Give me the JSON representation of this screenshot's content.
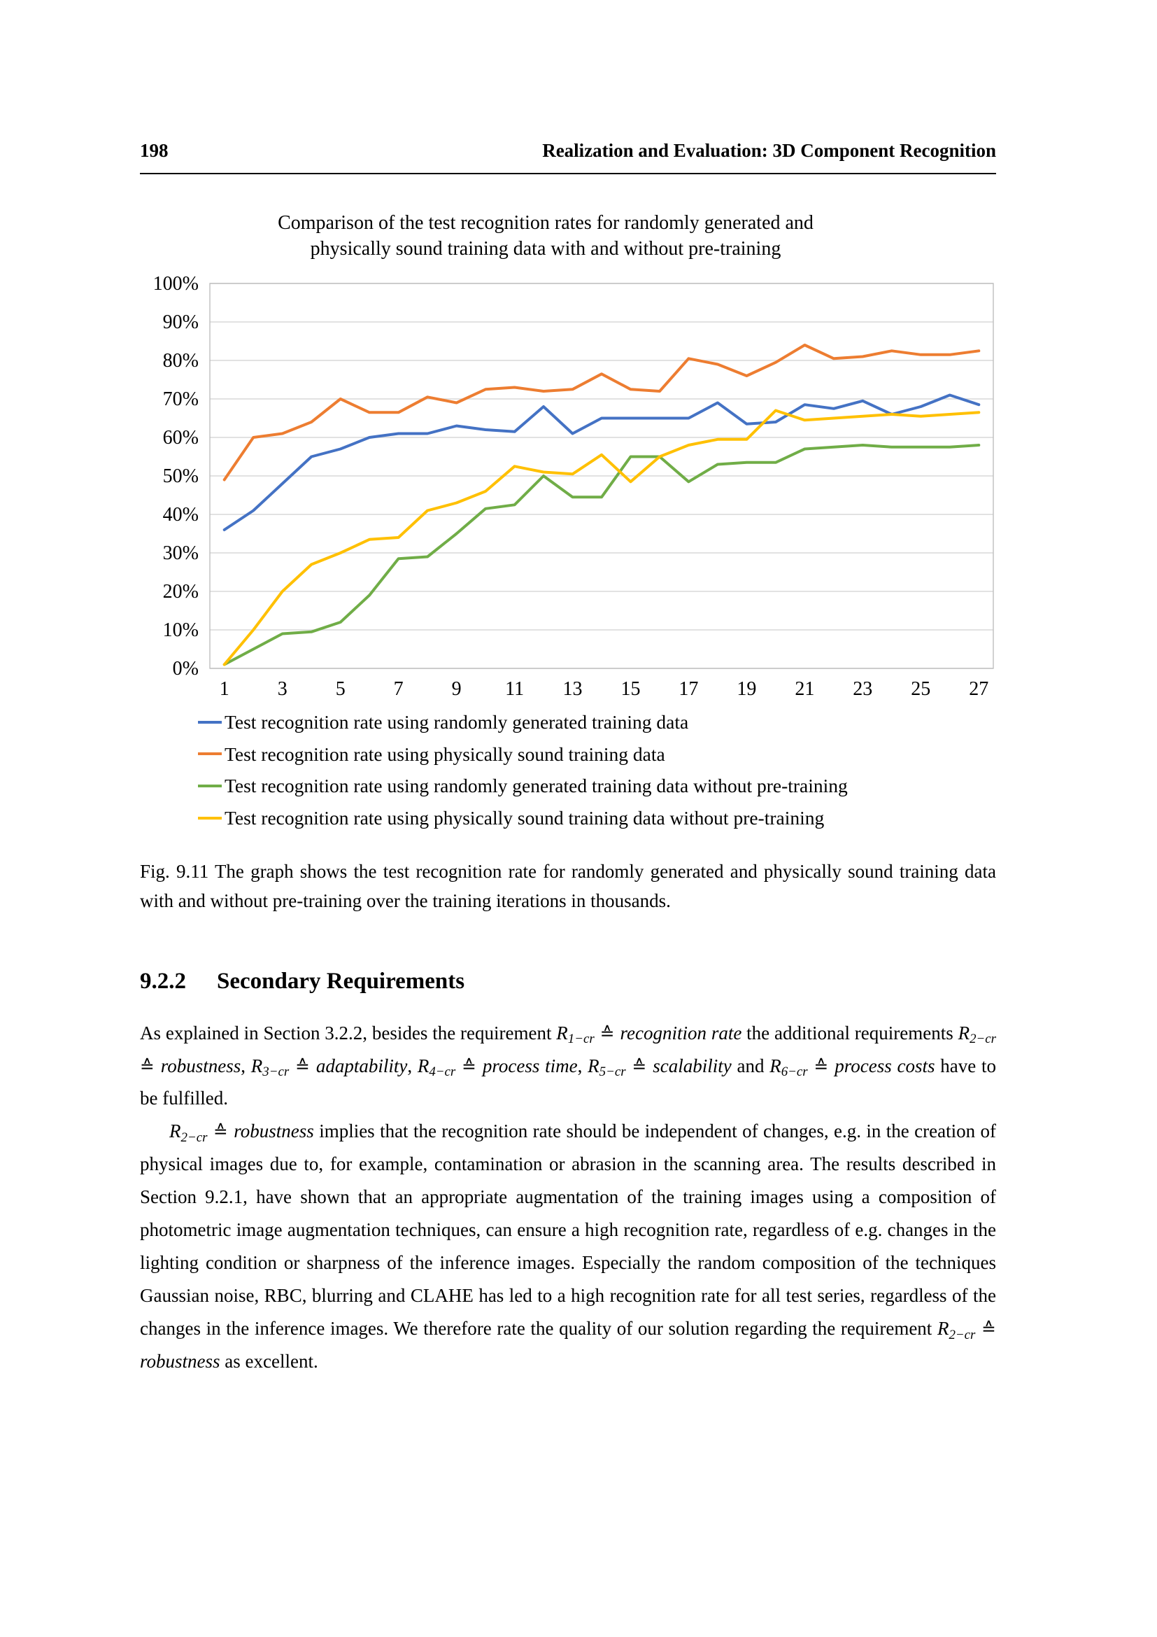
{
  "header": {
    "page_number": "198",
    "running_title": "Realization and Evaluation: 3D Component Recognition"
  },
  "chart_data": {
    "type": "line",
    "title_lines": [
      "Comparison of the test recognition rates for randomly generated and",
      "physically sound training data with and without pre-training"
    ],
    "xlabel": "",
    "ylabel": "",
    "grid": "horizontal",
    "legend_position": "bottom-left",
    "ylim": [
      0,
      100
    ],
    "y_tick_labels": [
      "0%",
      "10%",
      "20%",
      "30%",
      "40%",
      "50%",
      "60%",
      "70%",
      "80%",
      "90%",
      "100%"
    ],
    "x": [
      1,
      2,
      3,
      4,
      5,
      6,
      7,
      8,
      9,
      10,
      11,
      12,
      13,
      14,
      15,
      16,
      17,
      18,
      19,
      20,
      21,
      22,
      23,
      24,
      25,
      26,
      27
    ],
    "x_tick_labels": [
      "1",
      "3",
      "5",
      "7",
      "9",
      "11",
      "13",
      "15",
      "17",
      "19",
      "21",
      "23",
      "25",
      "27"
    ],
    "series": [
      {
        "name": "Test recognition rate using randomly generated training data",
        "color": "#4472C4",
        "values": [
          36,
          41,
          48,
          55,
          57,
          60,
          61,
          61,
          63,
          62,
          61.5,
          68,
          61,
          65,
          65,
          65,
          65,
          69,
          63.5,
          64,
          68.5,
          67.5,
          69.5,
          66,
          68,
          71,
          68.5
        ]
      },
      {
        "name": "Test recognition rate using physically sound training data",
        "color": "#ED7D31",
        "values": [
          49,
          60,
          61,
          64,
          70,
          66.5,
          66.5,
          70.5,
          69,
          72.5,
          73,
          72,
          72.5,
          76.5,
          72.5,
          72,
          80.5,
          79,
          76,
          79.5,
          84,
          80.5,
          81,
          82.5,
          81.5,
          81.5,
          82.5
        ]
      },
      {
        "name": "Test recognition rate using randomly generated training data without pre-training",
        "color": "#70AD47",
        "values": [
          1,
          5,
          9,
          9.5,
          12,
          19,
          28.5,
          29,
          35,
          41.5,
          42.5,
          50,
          44.5,
          44.5,
          55,
          55,
          48.5,
          53,
          53.5,
          53.5,
          57,
          57.5,
          58,
          57.5,
          57.5,
          57.5,
          58
        ]
      },
      {
        "name": "Test recognition rate using physically sound training data without pre-training",
        "color": "#FFC000",
        "values": [
          1,
          10,
          20,
          27,
          30,
          33.5,
          34,
          41,
          43,
          46,
          52.5,
          51,
          50.5,
          55.5,
          48.5,
          55,
          58,
          59.5,
          59.5,
          67,
          64.5,
          65,
          65.5,
          66,
          65.5,
          66,
          66.5
        ]
      }
    ]
  },
  "caption": {
    "text": "Fig. 9.11 The graph shows the test recognition rate for randomly generated and physically sound training data with and without pre-training over the training iterations in thousands."
  },
  "section": {
    "number": "9.2.2",
    "title": "Secondary Requirements"
  },
  "paragraphs": [
    {
      "segments": [
        {
          "t": "As explained in Section 3.2.2, besides the requirement ",
          "s": "p"
        },
        {
          "t": "R",
          "s": "i"
        },
        {
          "t": "1−cr",
          "s": "isub"
        },
        {
          "t": " ≙ ",
          "s": "sym"
        },
        {
          "t": "recognition rate",
          "s": "i"
        },
        {
          "t": " the additional requirements ",
          "s": "p"
        },
        {
          "t": "R",
          "s": "i"
        },
        {
          "t": "2−cr",
          "s": "isub"
        },
        {
          "t": " ≙ ",
          "s": "sym"
        },
        {
          "t": "robustness",
          "s": "i"
        },
        {
          "t": ", ",
          "s": "p"
        },
        {
          "t": "R",
          "s": "i"
        },
        {
          "t": "3−cr",
          "s": "isub"
        },
        {
          "t": " ≙ ",
          "s": "sym"
        },
        {
          "t": "adaptability",
          "s": "i"
        },
        {
          "t": ", ",
          "s": "p"
        },
        {
          "t": "R",
          "s": "i"
        },
        {
          "t": "4−cr",
          "s": "isub"
        },
        {
          "t": " ≙ ",
          "s": "sym"
        },
        {
          "t": "process time",
          "s": "i"
        },
        {
          "t": ", ",
          "s": "p"
        },
        {
          "t": "R",
          "s": "i"
        },
        {
          "t": "5−cr",
          "s": "isub"
        },
        {
          "t": " ≙ ",
          "s": "sym"
        },
        {
          "t": "scalability",
          "s": "i"
        },
        {
          "t": " and ",
          "s": "p"
        },
        {
          "t": "R",
          "s": "i"
        },
        {
          "t": "6−cr",
          "s": "isub"
        },
        {
          "t": " ≙ ",
          "s": "sym"
        },
        {
          "t": "process costs",
          "s": "i"
        },
        {
          "t": " have to be fulfilled.",
          "s": "p"
        }
      ]
    },
    {
      "segments": [
        {
          "t": "R",
          "s": "i"
        },
        {
          "t": "2−cr",
          "s": "isub"
        },
        {
          "t": " ≙ ",
          "s": "sym"
        },
        {
          "t": "robustness",
          "s": "i"
        },
        {
          "t": " implies that the recognition rate should be independent of changes, e.g. in the creation of physical images due to, for example, contamination or abrasion in the scanning area. The results described in Section 9.2.1, have shown that an appropriate augmentation of the training images using a composition of photometric image augmentation techniques, can ensure a high recognition rate, regardless of e.g. changes in the lighting condition or sharpness of the inference images. Especially the random composition of the techniques Gaussian noise, RBC, blurring and CLAHE has led to a high recognition rate for all test series, regardless of the changes in the inference images. We therefore rate the quality of our solution regarding the requirement ",
          "s": "p"
        },
        {
          "t": "R",
          "s": "i"
        },
        {
          "t": "2−cr",
          "s": "isub"
        },
        {
          "t": " ≙ ",
          "s": "sym"
        },
        {
          "t": "robustness",
          "s": "i"
        },
        {
          "t": " as excellent.",
          "s": "p"
        }
      ]
    }
  ]
}
